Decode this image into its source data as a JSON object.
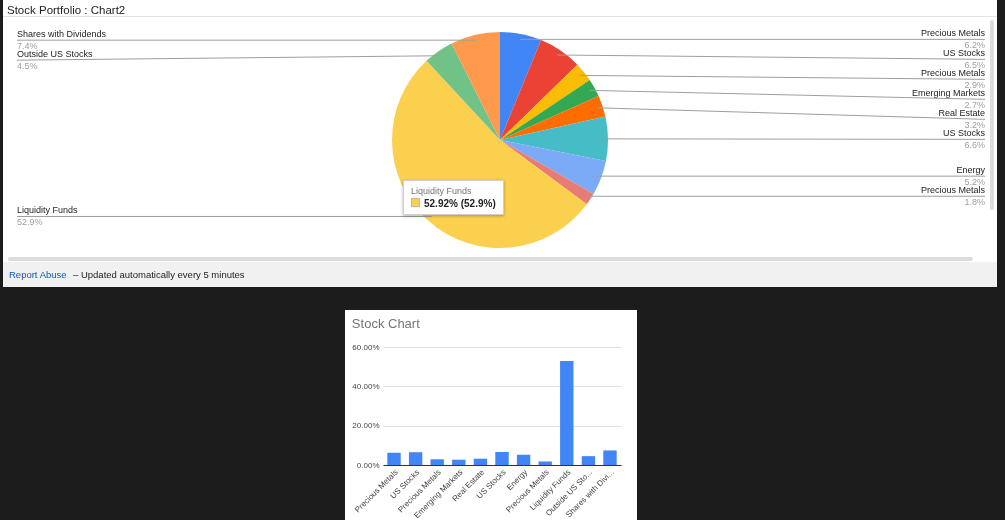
{
  "chart_data": [
    {
      "type": "pie",
      "title": "Stock Portfolio : Chart2",
      "categories": [
        "Precious Metals",
        "US Stocks",
        "Precious Metals",
        "Emerging Markets",
        "Real Estate",
        "US Stocks",
        "Energy",
        "Precious Metals",
        "Liquidity Funds",
        "Outside US Stocks",
        "Shares with Dividends"
      ],
      "values": [
        6.2,
        6.5,
        2.9,
        2.7,
        3.2,
        6.6,
        5.2,
        1.8,
        52.9,
        4.5,
        7.4
      ],
      "colors": [
        "#4285f4",
        "#ea4335",
        "#fbbc04",
        "#34a853",
        "#ff6d01",
        "#46bdc6",
        "#7baaf7",
        "#e67c73",
        "#fcd04f",
        "#71c287",
        "#ff994d"
      ],
      "value_labels": [
        "6.2%",
        "6.5%",
        "2.9%",
        "2.7%",
        "3.2%",
        "6.6%",
        "5.2%",
        "1.8%",
        "52.9%",
        "4.5%",
        "7.4%"
      ],
      "annotations": [
        "Liquidity Funds",
        "52.92% (52.9%)",
        "Report Abuse",
        "– Updated automatically every 5 minutes"
      ]
    },
    {
      "type": "bar",
      "title": "Stock Chart",
      "categories": [
        "Precious Metals",
        "US Stocks",
        "Precious Metals",
        "Emerging Markets",
        "Real Estate",
        "US Stocks",
        "Energy",
        "Precious Metals",
        "Liquidity Funds",
        "Outside US Sto...",
        "Shares with Divi..."
      ],
      "values": [
        6.2,
        6.5,
        2.9,
        2.7,
        3.2,
        6.6,
        5.2,
        1.8,
        52.9,
        4.5,
        7.4
      ],
      "color": "#4285f4",
      "ylim": [
        0,
        60
      ],
      "yticks": [
        {
          "value": 0,
          "label": "0.00%"
        },
        {
          "value": 20,
          "label": "20.00%"
        },
        {
          "value": 40,
          "label": "40.00%"
        },
        {
          "value": 60,
          "label": "60.00%"
        }
      ],
      "grid": "y"
    }
  ]
}
